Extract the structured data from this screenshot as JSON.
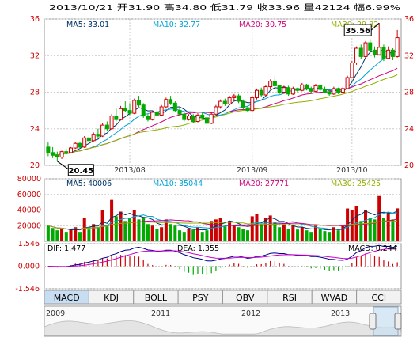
{
  "header": {
    "date": "2013/10/21",
    "open_label": "开",
    "open": "31.90",
    "high_label": "高",
    "high": "34.80",
    "low_label": "低",
    "low": "31.79",
    "close_label": "收",
    "close": "33.96",
    "volume_label": "量",
    "volume": "42124",
    "change_label": "幅",
    "change": "6.99%"
  },
  "price_panel": {
    "ma_labels": [
      {
        "text": "MA5: 33.01",
        "color": "#003366"
      },
      {
        "text": "MA10: 32.77",
        "color": "#00a2d8"
      },
      {
        "text": "MA20: 30.75",
        "color": "#d0007b"
      },
      {
        "text": "MA30: 29.82",
        "color": "#8fb100"
      }
    ],
    "y_ticks": [
      "36",
      "32",
      "28",
      "24",
      "20"
    ],
    "x_ticks": [
      "2013/08",
      "2013/09",
      "2013/10"
    ],
    "high_marker": "35.56",
    "low_marker": "20.45"
  },
  "volume_panel": {
    "ma_labels": [
      {
        "text": "MA5: 40006",
        "color": "#003366"
      },
      {
        "text": "MA10: 35044",
        "color": "#00a2d8"
      },
      {
        "text": "MA20: 27771",
        "color": "#d0007b"
      },
      {
        "text": "MA30: 25425",
        "color": "#8fb100"
      }
    ],
    "y_ticks": [
      "80000",
      "60000",
      "40000",
      "20000"
    ]
  },
  "macd_panel": {
    "labels": [
      {
        "text": "DIF: 1.477",
        "color": "#000000"
      },
      {
        "text": "DEA: 1.355",
        "color": "#000000"
      },
      {
        "text": "MACD: 0.244",
        "color": "#000000"
      }
    ],
    "y_ticks": [
      "1.546",
      "0.000",
      "-1.546"
    ]
  },
  "tabs": [
    "MACD",
    "KDJ",
    "BOLL",
    "PSY",
    "OBV",
    "RSI",
    "WVAD",
    "CCI"
  ],
  "active_tab": "MACD",
  "navigator": {
    "years": [
      "2009",
      "2011",
      "2012",
      "2013"
    ]
  },
  "colors": {
    "up": "#cc0000",
    "down": "#00aa00",
    "grid": "#cccccc",
    "frame": "#999999"
  },
  "chart_data": {
    "type": "candlestick",
    "price_ylim": [
      20,
      36
    ],
    "volume_ylim": [
      0,
      80000
    ],
    "macd_ylim": [
      -1.546,
      1.546
    ],
    "months": [
      {
        "label": "2013/08",
        "index": 18
      },
      {
        "label": "2013/09",
        "index": 45
      },
      {
        "label": "2013/10",
        "index": 67
      }
    ],
    "ohlc": [
      [
        22.0,
        22.5,
        21.0,
        21.4
      ],
      [
        21.4,
        22.0,
        20.8,
        21.1
      ],
      [
        21.1,
        21.5,
        20.45,
        20.9
      ],
      [
        20.9,
        21.6,
        20.7,
        21.5
      ],
      [
        21.5,
        21.8,
        21.2,
        21.4
      ],
      [
        21.4,
        22.0,
        21.3,
        21.9
      ],
      [
        21.9,
        22.6,
        21.8,
        22.4
      ],
      [
        22.4,
        22.6,
        21.9,
        22.0
      ],
      [
        22.0,
        23.2,
        21.9,
        23.0
      ],
      [
        23.0,
        23.3,
        22.5,
        22.7
      ],
      [
        22.7,
        23.6,
        22.6,
        23.4
      ],
      [
        23.4,
        24.0,
        23.0,
        23.2
      ],
      [
        23.2,
        24.6,
        23.1,
        24.4
      ],
      [
        24.4,
        24.8,
        23.8,
        24.0
      ],
      [
        24.0,
        25.6,
        23.9,
        25.4
      ],
      [
        25.4,
        26.2,
        24.8,
        25.0
      ],
      [
        25.0,
        26.5,
        24.9,
        26.2
      ],
      [
        26.2,
        27.0,
        25.8,
        26.0
      ],
      [
        26.0,
        26.8,
        25.5,
        25.7
      ],
      [
        25.7,
        27.3,
        25.6,
        27.1
      ],
      [
        27.1,
        27.6,
        26.4,
        26.6
      ],
      [
        26.6,
        26.8,
        25.2,
        25.4
      ],
      [
        25.4,
        25.6,
        24.8,
        25.0
      ],
      [
        25.0,
        26.0,
        24.9,
        25.8
      ],
      [
        25.8,
        26.2,
        25.3,
        25.5
      ],
      [
        25.5,
        26.6,
        25.4,
        26.4
      ],
      [
        26.4,
        27.4,
        26.2,
        27.2
      ],
      [
        27.2,
        27.6,
        26.6,
        26.8
      ],
      [
        26.8,
        27.0,
        25.8,
        26.0
      ],
      [
        26.0,
        26.3,
        25.4,
        25.6
      ],
      [
        25.6,
        25.8,
        24.8,
        25.0
      ],
      [
        25.0,
        25.6,
        24.9,
        25.4
      ],
      [
        25.4,
        25.6,
        24.6,
        24.8
      ],
      [
        24.8,
        25.7,
        24.7,
        25.5
      ],
      [
        25.5,
        25.8,
        25.0,
        25.2
      ],
      [
        25.2,
        25.3,
        24.4,
        24.6
      ],
      [
        24.6,
        25.8,
        24.5,
        25.6
      ],
      [
        25.6,
        26.6,
        25.5,
        26.4
      ],
      [
        26.4,
        27.2,
        26.2,
        27.0
      ],
      [
        27.0,
        27.3,
        26.5,
        26.7
      ],
      [
        26.7,
        27.6,
        26.6,
        27.4
      ],
      [
        27.4,
        27.8,
        27.0,
        27.6
      ],
      [
        27.6,
        27.8,
        26.8,
        27.0
      ],
      [
        27.0,
        27.2,
        26.1,
        26.3
      ],
      [
        26.3,
        26.5,
        25.8,
        26.0
      ],
      [
        26.0,
        27.6,
        25.9,
        27.4
      ],
      [
        27.4,
        28.4,
        27.2,
        28.2
      ],
      [
        28.2,
        28.5,
        27.5,
        27.7
      ],
      [
        27.7,
        28.8,
        27.6,
        28.6
      ],
      [
        28.6,
        29.4,
        28.3,
        29.2
      ],
      [
        29.2,
        29.8,
        28.5,
        28.7
      ],
      [
        28.7,
        28.8,
        27.8,
        28.0
      ],
      [
        28.0,
        28.7,
        27.9,
        28.5
      ],
      [
        28.5,
        28.7,
        27.6,
        27.8
      ],
      [
        27.8,
        28.6,
        27.7,
        28.4
      ],
      [
        28.4,
        28.5,
        27.9,
        28.2
      ],
      [
        28.2,
        29.0,
        28.1,
        28.8
      ],
      [
        28.8,
        28.9,
        28.2,
        28.4
      ],
      [
        28.4,
        28.6,
        27.9,
        28.1
      ],
      [
        28.1,
        28.9,
        28.0,
        28.7
      ],
      [
        28.7,
        28.8,
        28.1,
        28.3
      ],
      [
        28.3,
        28.6,
        27.9,
        28.0
      ],
      [
        28.0,
        28.3,
        27.6,
        27.8
      ],
      [
        27.8,
        28.6,
        27.7,
        28.4
      ],
      [
        28.4,
        28.5,
        27.8,
        28.0
      ],
      [
        28.0,
        28.6,
        27.9,
        28.4
      ],
      [
        28.4,
        29.8,
        28.3,
        29.6
      ],
      [
        29.6,
        31.4,
        29.5,
        31.2
      ],
      [
        31.2,
        33.0,
        31.0,
        32.8
      ],
      [
        32.8,
        33.2,
        31.6,
        31.9
      ],
      [
        31.9,
        33.6,
        31.8,
        33.4
      ],
      [
        33.4,
        33.8,
        32.4,
        32.6
      ],
      [
        32.6,
        33.0,
        31.8,
        32.1
      ],
      [
        32.1,
        35.56,
        32.0,
        32.9
      ],
      [
        32.9,
        33.2,
        31.4,
        31.7
      ],
      [
        31.7,
        33.0,
        31.6,
        32.6
      ],
      [
        32.6,
        32.8,
        31.5,
        31.9
      ],
      [
        31.9,
        34.8,
        31.79,
        33.96
      ]
    ],
    "volume": [
      20000,
      17000,
      14000,
      16000,
      12000,
      15000,
      18000,
      12000,
      30000,
      15000,
      22000,
      18000,
      40000,
      20000,
      53000,
      32000,
      38000,
      26000,
      30000,
      40000,
      28000,
      30000,
      22000,
      20000,
      16000,
      18000,
      28000,
      22000,
      20000,
      14000,
      12000,
      16000,
      15000,
      18000,
      12000,
      14000,
      26000,
      28000,
      30000,
      20000,
      26000,
      20000,
      18000,
      16000,
      14000,
      32000,
      35000,
      22000,
      30000,
      33000,
      24000,
      18000,
      22000,
      16000,
      20000,
      15000,
      18000,
      14000,
      12000,
      20000,
      16000,
      13000,
      12000,
      18000,
      14000,
      20000,
      42000,
      40000,
      45000,
      26000,
      40000,
      30000,
      28000,
      58000,
      30000,
      36000,
      28000,
      42124
    ],
    "macd": {
      "dif": 1.477,
      "dea": 1.355,
      "macd": 0.244
    }
  }
}
